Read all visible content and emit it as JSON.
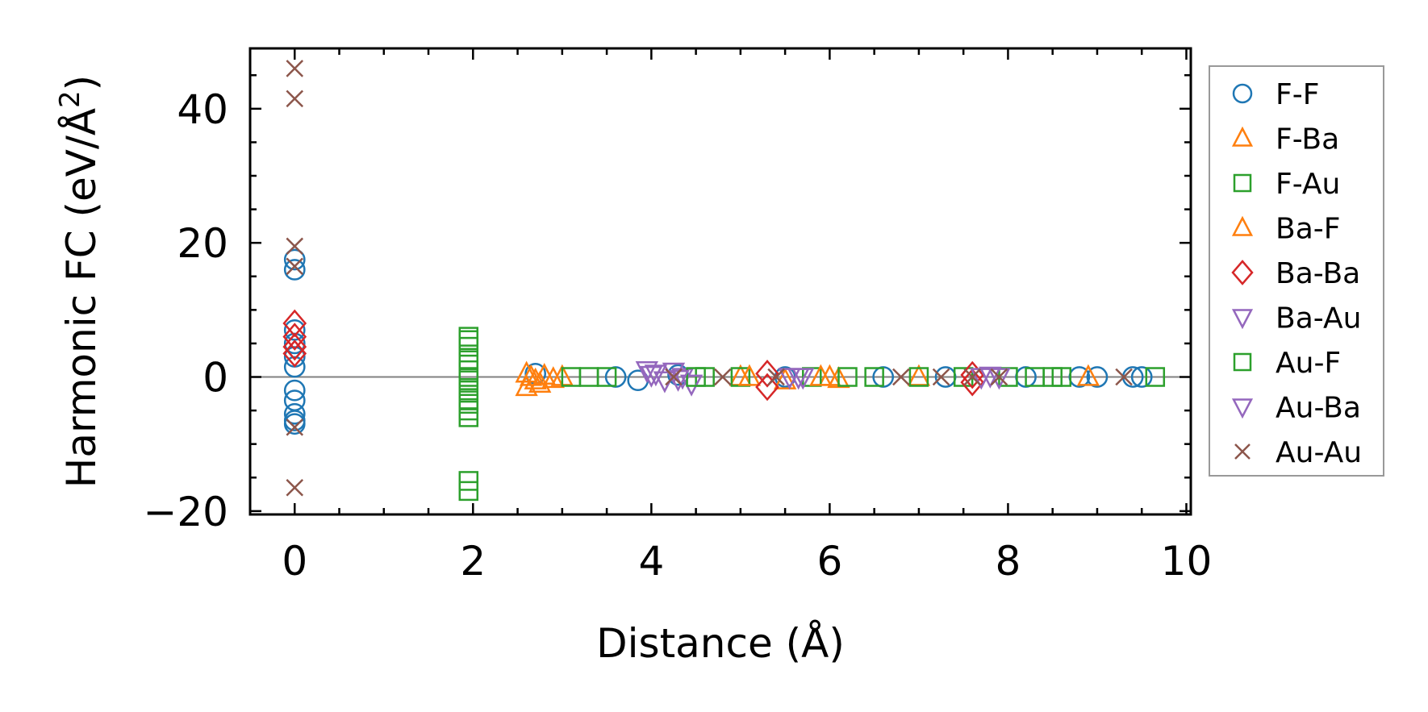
{
  "chart_data": {
    "type": "scatter",
    "title": "",
    "xlabel": "Distance (Å)",
    "ylabel_main": "Harmonic FC (eV/Å",
    "ylabel_sup": "2",
    "ylabel_end": ")",
    "xlim": [
      -0.5,
      10.05
    ],
    "ylim": [
      -20.5,
      49
    ],
    "xticks": [
      0,
      2,
      4,
      6,
      8,
      10
    ],
    "xtick_labels": [
      "0",
      "2",
      "4",
      "6",
      "8",
      "10"
    ],
    "yticks": [
      -20,
      0,
      20,
      40
    ],
    "ytick_labels": [
      "−20",
      "0",
      "20",
      "40"
    ],
    "zero_line": true,
    "grid": false,
    "legend_position": "outside right",
    "series": [
      {
        "name": "F-F",
        "marker": "circle",
        "color": "#1f77b4",
        "points": [
          [
            0,
            17.5
          ],
          [
            0,
            16
          ],
          [
            0,
            7
          ],
          [
            0,
            5
          ],
          [
            0,
            3
          ],
          [
            0,
            1.5
          ],
          [
            0,
            -2
          ],
          [
            0,
            -3.5
          ],
          [
            0,
            -5.5
          ],
          [
            0,
            -6.5
          ],
          [
            0,
            -7
          ],
          [
            2.7,
            0.5
          ],
          [
            3.6,
            0
          ],
          [
            3.85,
            -0.5
          ],
          [
            4.3,
            0.3
          ],
          [
            5.5,
            0
          ],
          [
            6.6,
            0
          ],
          [
            7.3,
            0
          ],
          [
            8.2,
            0
          ],
          [
            8.8,
            0
          ],
          [
            9.0,
            0
          ],
          [
            9.4,
            0
          ],
          [
            9.5,
            0
          ]
        ]
      },
      {
        "name": "F-Ba",
        "marker": "triangle-up",
        "color": "#ff7f0e",
        "points": [
          [
            2.6,
            0.5
          ],
          [
            2.6,
            -1.5
          ],
          [
            2.7,
            -0.5
          ],
          [
            2.8,
            0.2
          ],
          [
            2.9,
            -0.3
          ],
          [
            3.0,
            0
          ],
          [
            5.0,
            0
          ],
          [
            5.5,
            -0.5
          ],
          [
            6.0,
            0
          ],
          [
            6.1,
            -0.3
          ],
          [
            7.0,
            0
          ],
          [
            8.9,
            0
          ]
        ]
      },
      {
        "name": "F-Au",
        "marker": "square",
        "color": "#2ca02c",
        "points": [
          [
            1.95,
            6
          ],
          [
            1.95,
            4.5
          ],
          [
            1.95,
            2.5
          ],
          [
            1.95,
            1
          ],
          [
            1.95,
            -0.5
          ],
          [
            1.95,
            -2
          ],
          [
            1.95,
            -3.5
          ],
          [
            1.95,
            -5
          ],
          [
            1.95,
            -6
          ],
          [
            1.95,
            -15.5
          ],
          [
            1.95,
            -17
          ],
          [
            3.1,
            0
          ],
          [
            3.3,
            0
          ],
          [
            3.5,
            0
          ],
          [
            4.6,
            0
          ],
          [
            5.0,
            0
          ],
          [
            5.8,
            0
          ],
          [
            6.5,
            0
          ],
          [
            7.0,
            0
          ],
          [
            7.5,
            0
          ],
          [
            8.0,
            0
          ],
          [
            8.5,
            0
          ],
          [
            8.6,
            0
          ]
        ]
      },
      {
        "name": "Ba-F",
        "marker": "triangle-up",
        "color": "#ff7f0e",
        "points": [
          [
            2.65,
            0
          ],
          [
            2.75,
            -1
          ],
          [
            5.1,
            0
          ],
          [
            5.9,
            0
          ]
        ]
      },
      {
        "name": "Ba-Ba",
        "marker": "diamond",
        "color": "#d62728",
        "points": [
          [
            0,
            8
          ],
          [
            0,
            6
          ],
          [
            0,
            4.5
          ],
          [
            0,
            3.5
          ],
          [
            5.3,
            0.5
          ],
          [
            5.3,
            -1.5
          ],
          [
            7.6,
            0.3
          ],
          [
            7.6,
            -0.8
          ]
        ]
      },
      {
        "name": "Ba-Au",
        "marker": "triangle-down",
        "color": "#9467bd",
        "points": [
          [
            3.95,
            1
          ],
          [
            4.05,
            0.5
          ],
          [
            4.15,
            -0.5
          ],
          [
            4.25,
            0.8
          ],
          [
            4.35,
            0
          ],
          [
            4.45,
            -1
          ],
          [
            5.55,
            0
          ],
          [
            5.7,
            0
          ],
          [
            7.7,
            0
          ],
          [
            7.9,
            0
          ]
        ]
      },
      {
        "name": "Au-F",
        "marker": "square",
        "color": "#2ca02c",
        "points": [
          [
            1.95,
            5.5
          ],
          [
            1.95,
            0
          ],
          [
            1.95,
            -4
          ],
          [
            4.5,
            0
          ],
          [
            6.2,
            0
          ],
          [
            8.3,
            0
          ],
          [
            9.65,
            0
          ]
        ]
      },
      {
        "name": "Au-Ba",
        "marker": "triangle-down",
        "color": "#9467bd",
        "points": [
          [
            4.0,
            0.3
          ],
          [
            4.3,
            -0.3
          ],
          [
            5.65,
            0
          ],
          [
            7.8,
            0.2
          ]
        ]
      },
      {
        "name": "Au-Au",
        "marker": "x",
        "color": "#8c564b",
        "points": [
          [
            0,
            46
          ],
          [
            0,
            41.5
          ],
          [
            0,
            19.5
          ],
          [
            0,
            16.5
          ],
          [
            0,
            -7.5
          ],
          [
            0,
            -16.5
          ],
          [
            4.25,
            0
          ],
          [
            4.8,
            0
          ],
          [
            5.4,
            0
          ],
          [
            6.8,
            0
          ],
          [
            7.25,
            0
          ],
          [
            7.6,
            0
          ],
          [
            7.9,
            0
          ],
          [
            9.3,
            0
          ]
        ]
      }
    ]
  }
}
